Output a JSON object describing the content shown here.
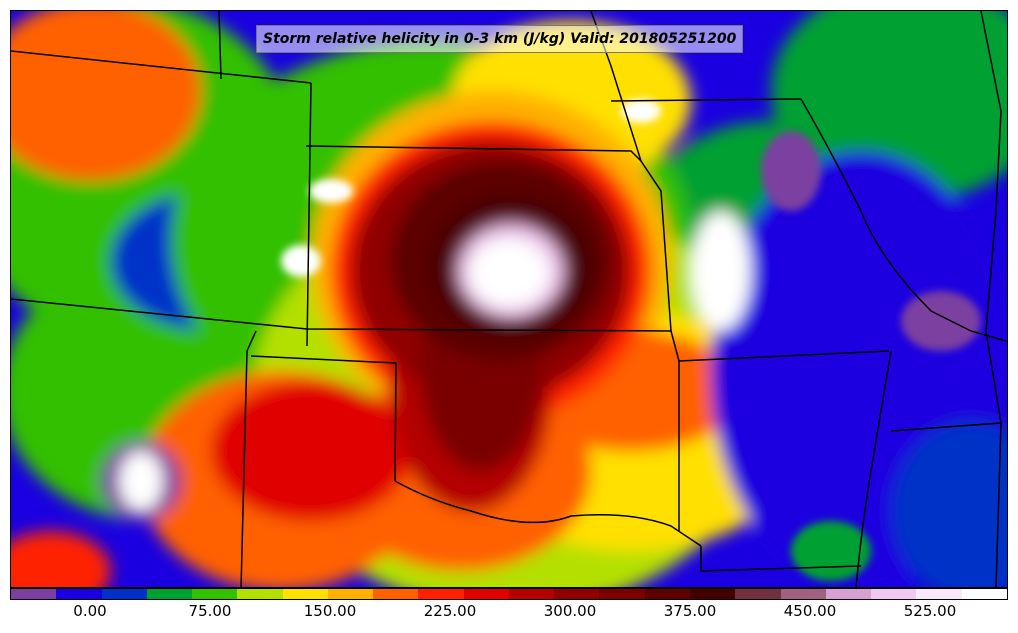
{
  "title": "Storm relative helicity in 0-3 km (J/kg) Valid: 201805251200",
  "colorbar": {
    "colors": [
      "#7b3fa0",
      "#1a00e0",
      "#0030c8",
      "#00a030",
      "#33c000",
      "#b4e000",
      "#ffe000",
      "#ffb000",
      "#ff6000",
      "#ff2000",
      "#e00000",
      "#b40000",
      "#900000",
      "#7a0000",
      "#5c0000",
      "#440000",
      "#703040",
      "#a06080",
      "#d8a0d0",
      "#f0c8f0",
      "#fae8fa",
      "#ffffff"
    ],
    "ticks": [
      "0.00",
      "75.00",
      "150.00",
      "225.00",
      "300.00",
      "375.00",
      "450.00",
      "525.00"
    ]
  },
  "map": {
    "background": "#0a2cd0",
    "field_colors": {
      "purple": "#7b3fa0",
      "blue": "#1a00e0",
      "darkblue": "#0030c8",
      "green": "#00a030",
      "lightgreen": "#33c000",
      "yellowgreen": "#b4e000",
      "yellow": "#ffe000",
      "orange": "#ff7a00",
      "red": "#ff2000",
      "darkred": "#b40000",
      "maroon": "#600000",
      "lavender": "#f0c8f0",
      "white": "#ffffff"
    }
  }
}
